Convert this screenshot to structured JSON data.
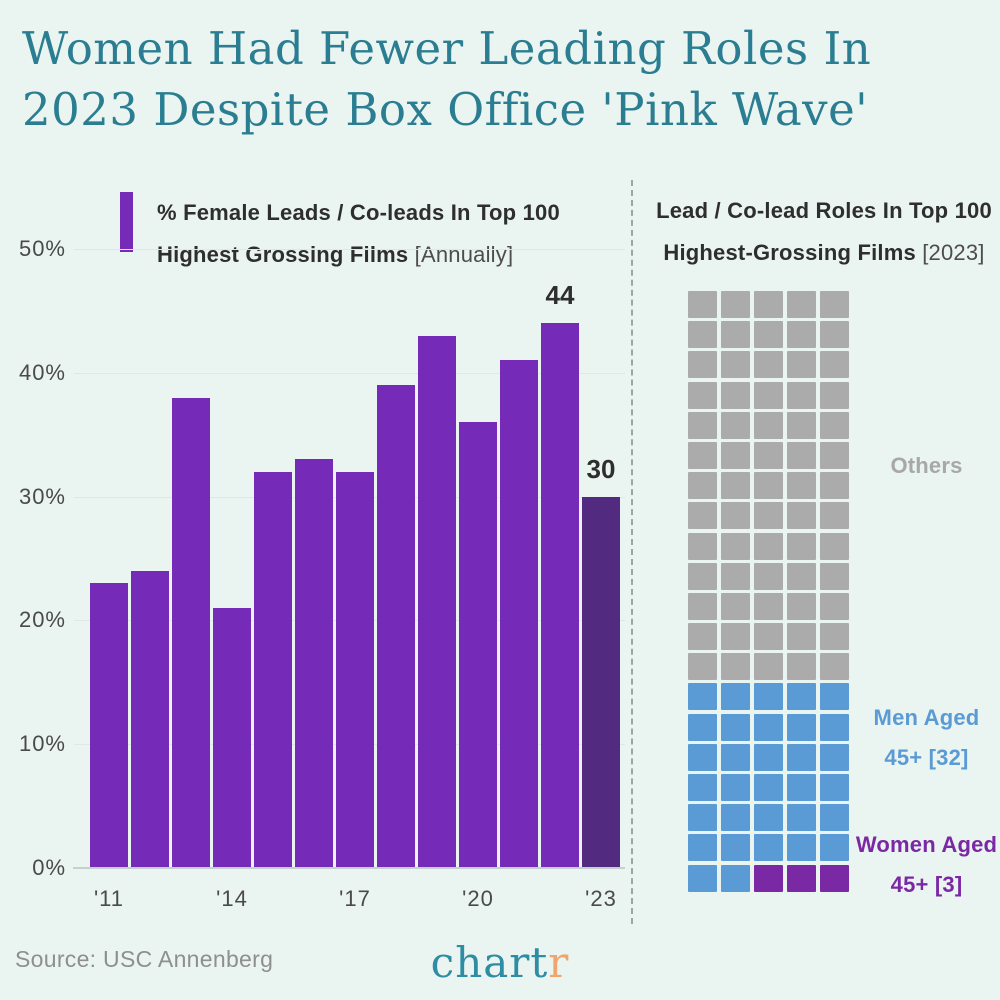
{
  "title": {
    "line1": "Women Had Fewer Leading Roles In",
    "line2": "2023 Despite Box Office 'Pink Wave'"
  },
  "bar_section": {
    "legend_line1": "% Female Leads / Co-leads In Top 100",
    "legend_line2_main": "Highest Grossing Films ",
    "legend_line2_bracket": "[Annually]"
  },
  "waffle_section": {
    "header_line1": "Lead / Co-lead Roles In Top 100",
    "header_line2_main": "Highest-Grossing Films ",
    "header_line2_bracket": "[2023]",
    "label_others": "Others",
    "label_men_line1": "Men Aged",
    "label_men_line2": "45+ [32]",
    "label_women_line1": "Women Aged",
    "label_women_line2": "45+ [3]"
  },
  "footer": {
    "source": "Source: USC Annenberg",
    "logo_main": "chart",
    "logo_accent": "r"
  },
  "colors": {
    "background": "#eaf4f1",
    "title_teal": "#2b7e92",
    "bar_purple": "#752bb8",
    "bar_purple_dark": "#522a80",
    "waffle_palette": [
      "#ababab",
      "#5b9bd5",
      "#7b28a5"
    ],
    "label_gray": "#a8a8a8",
    "label_blue": "#5b9bd5",
    "label_purple": "#7b28a5",
    "text_dark": "#2e2e2e",
    "axis_text": "#4a4a4a",
    "gridline": "#dde9e6",
    "divider": "#9aa6a4",
    "source_text": "#8f8f8f",
    "logo_teal": "#2e8da4",
    "logo_orange": "#f0a46e"
  },
  "chart_data": [
    {
      "type": "bar",
      "title": "% Female Leads / Co-leads In Top 100 Highest Grossing Films [Annually]",
      "categories": [
        "'11",
        "'12",
        "'13",
        "'14",
        "'15",
        "'16",
        "'17",
        "'18",
        "'19",
        "'20",
        "'21",
        "'22",
        "'23"
      ],
      "values": [
        23,
        24,
        38,
        21,
        32,
        33,
        32,
        39,
        43,
        36,
        41,
        44,
        30
      ],
      "unit": "%",
      "ylim": [
        0,
        50
      ],
      "yticks": [
        0,
        10,
        20,
        30,
        40,
        50
      ],
      "xticks_shown": [
        "'11",
        "'14",
        "'17",
        "'20",
        "'23"
      ],
      "data_label_indices": [
        11,
        12
      ],
      "data_labels": [
        "44",
        "30"
      ],
      "highlight_index": 12,
      "grid": true,
      "legend_position": "top-left"
    },
    {
      "type": "pie",
      "render_style": "waffle-grid",
      "title": "Lead / Co-lead Roles In Top 100 Highest-Grossing Films [2023]",
      "categories": [
        "Others",
        "Men Aged 45+",
        "Women Aged 45+"
      ],
      "values": [
        65,
        32,
        3
      ],
      "total": 100,
      "grid_rows": 20,
      "grid_cols": 5,
      "fill_order": "top-left-to-bottom-right",
      "legend_position": "right"
    }
  ]
}
